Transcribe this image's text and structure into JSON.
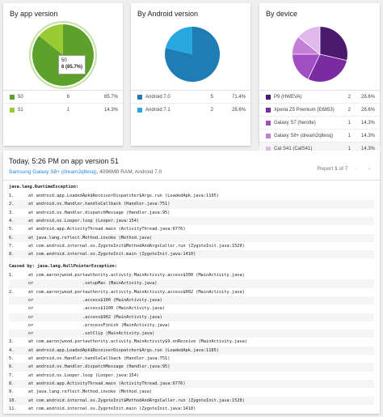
{
  "colors": {
    "green_dark": "#5ca22a",
    "green_light": "#99cc33",
    "blue_dark": "#1e7eb3",
    "blue_light": "#29a8e0",
    "purple_1": "#4a1a6e",
    "purple_2": "#7b2ba0",
    "purple_3": "#a04ec1",
    "purple_4": "#c47fd8",
    "purple_5": "#dfb9eb",
    "link": "#1e88e5"
  },
  "cards": {
    "app_version": {
      "title": "By app version",
      "tooltip": {
        "label": "50",
        "value": "6 (85.7%)"
      },
      "rows": [
        {
          "name": "50",
          "count": "6",
          "pct": "85.7%",
          "color": "#5ca22a"
        },
        {
          "name": "51",
          "count": "1",
          "pct": "14.3%",
          "color": "#99cc33"
        }
      ]
    },
    "android_version": {
      "title": "By Android version",
      "rows": [
        {
          "name": "Android 7.0",
          "count": "5",
          "pct": "71.4%",
          "color": "#1e7eb3"
        },
        {
          "name": "Android 7.1",
          "count": "2",
          "pct": "28.6%",
          "color": "#29a8e0"
        }
      ]
    },
    "device": {
      "title": "By device",
      "rows": [
        {
          "name": "P9 (HWEVA)",
          "count": "2",
          "pct": "28.6%",
          "color": "#4a1a6e"
        },
        {
          "name": "Xperia Z5 Premium (E6853)",
          "count": "2",
          "pct": "28.6%",
          "color": "#7b2ba0"
        },
        {
          "name": "Galaxy S7 (herolte)",
          "count": "1",
          "pct": "14.3%",
          "color": "#a04ec1"
        },
        {
          "name": "Galaxy S8+ (dream2qltesq)",
          "count": "1",
          "pct": "14.3%",
          "color": "#c47fd8"
        },
        {
          "name": "Cat S41 (CatS41)",
          "count": "1",
          "pct": "14.3%",
          "color": "#dfb9eb"
        }
      ]
    }
  },
  "report": {
    "title": "Today, 5:26 PM on app version 51",
    "device_link": "Samsung Galaxy S8+ (dream2qltesq)",
    "device_info": ", 4096MB RAM, Android 7.0",
    "nav_prefix": "Report ",
    "nav_current": "1",
    "nav_suffix": " of 7",
    "prev_icon": "chevron-left-icon",
    "next_icon": "chevron-right-icon",
    "exception1": "java.lang.RuntimeException:",
    "lines1": [
      {
        "n": "1.",
        "t": "at android.app.LoadedApk$ReceiverDispatcher$Args.run (LoadedApk.java:1195)"
      },
      {
        "n": "2.",
        "t": "at android.os.Handler.handleCallback (Handler.java:751)"
      },
      {
        "n": "3.",
        "t": "at android.os.Handler.dispatchMessage (Handler.java:95)"
      },
      {
        "n": "4.",
        "t": "at android.os.Looper.loop (Looper.java:154)"
      },
      {
        "n": "5.",
        "t": "at android.app.ActivityThread.main (ActivityThread.java:6776)"
      },
      {
        "n": "6.",
        "t": "at java.lang.reflect.Method.invoke (Method.java)"
      },
      {
        "n": "7.",
        "t": "at com.android.internal.os.ZygoteInit$MethodAndArgsCaller.run (ZygoteInit.java:1520)"
      },
      {
        "n": "8.",
        "t": "at com.android.internal.os.ZygoteInit.main (ZygoteInit.java:1410)"
      }
    ],
    "exception2": "Caused by: java.lang.NullPointerException:",
    "lines2": [
      {
        "n": "1.",
        "t": "at com.aaronjwood.portauthority.activity.MainActivity.access$300 (MainActivity.java)"
      },
      {
        "n": "",
        "t": "or                   .setupMac (MainActivity.java)"
      },
      {
        "n": "2.",
        "t": "at com.aaronjwood.portauthority.activity.MainActivity.access$002 (MainActivity.java)"
      },
      {
        "n": "",
        "t": "or                   .access$100 (MainActivity.java)"
      },
      {
        "n": "",
        "t": "or                   .access$1100 (MainActivity.java)"
      },
      {
        "n": "",
        "t": "or                   .access$902 (MainActivity.java)"
      },
      {
        "n": "",
        "t": "or                   .processFinish (MainActivity.java)"
      },
      {
        "n": "",
        "t": "or                   .setClip (MainActivity.java)"
      },
      {
        "n": "3.",
        "t": "at com.aaronjwood.portauthority.activity.MainActivity$9.onReceive (MainActivity.java)"
      },
      {
        "n": "4.",
        "t": "at android.app.LoadedApk$ReceiverDispatcher$Args.run (LoadedApk.java:1185)"
      },
      {
        "n": "5.",
        "t": "at android.os.Handler.handleCallback (Handler.java:751)"
      },
      {
        "n": "6.",
        "t": "at android.os.Handler.dispatchMessage (Handler.java:95)"
      },
      {
        "n": "7.",
        "t": "at android.os.Looper.loop (Looper.java:154)"
      },
      {
        "n": "8.",
        "t": "at android.app.ActivityThread.main (ActivityThread.java:6776)"
      },
      {
        "n": "9.",
        "t": "at java.lang.reflect.Method.invoke (Method.java)"
      },
      {
        "n": "10.",
        "t": "at com.android.internal.os.ZygoteInit$MethodAndArgsCaller.run (ZygoteInit.java:1520)"
      },
      {
        "n": "11.",
        "t": "at com.android.internal.os.ZygoteInit.main (ZygoteInit.java:1410)"
      }
    ]
  }
}
